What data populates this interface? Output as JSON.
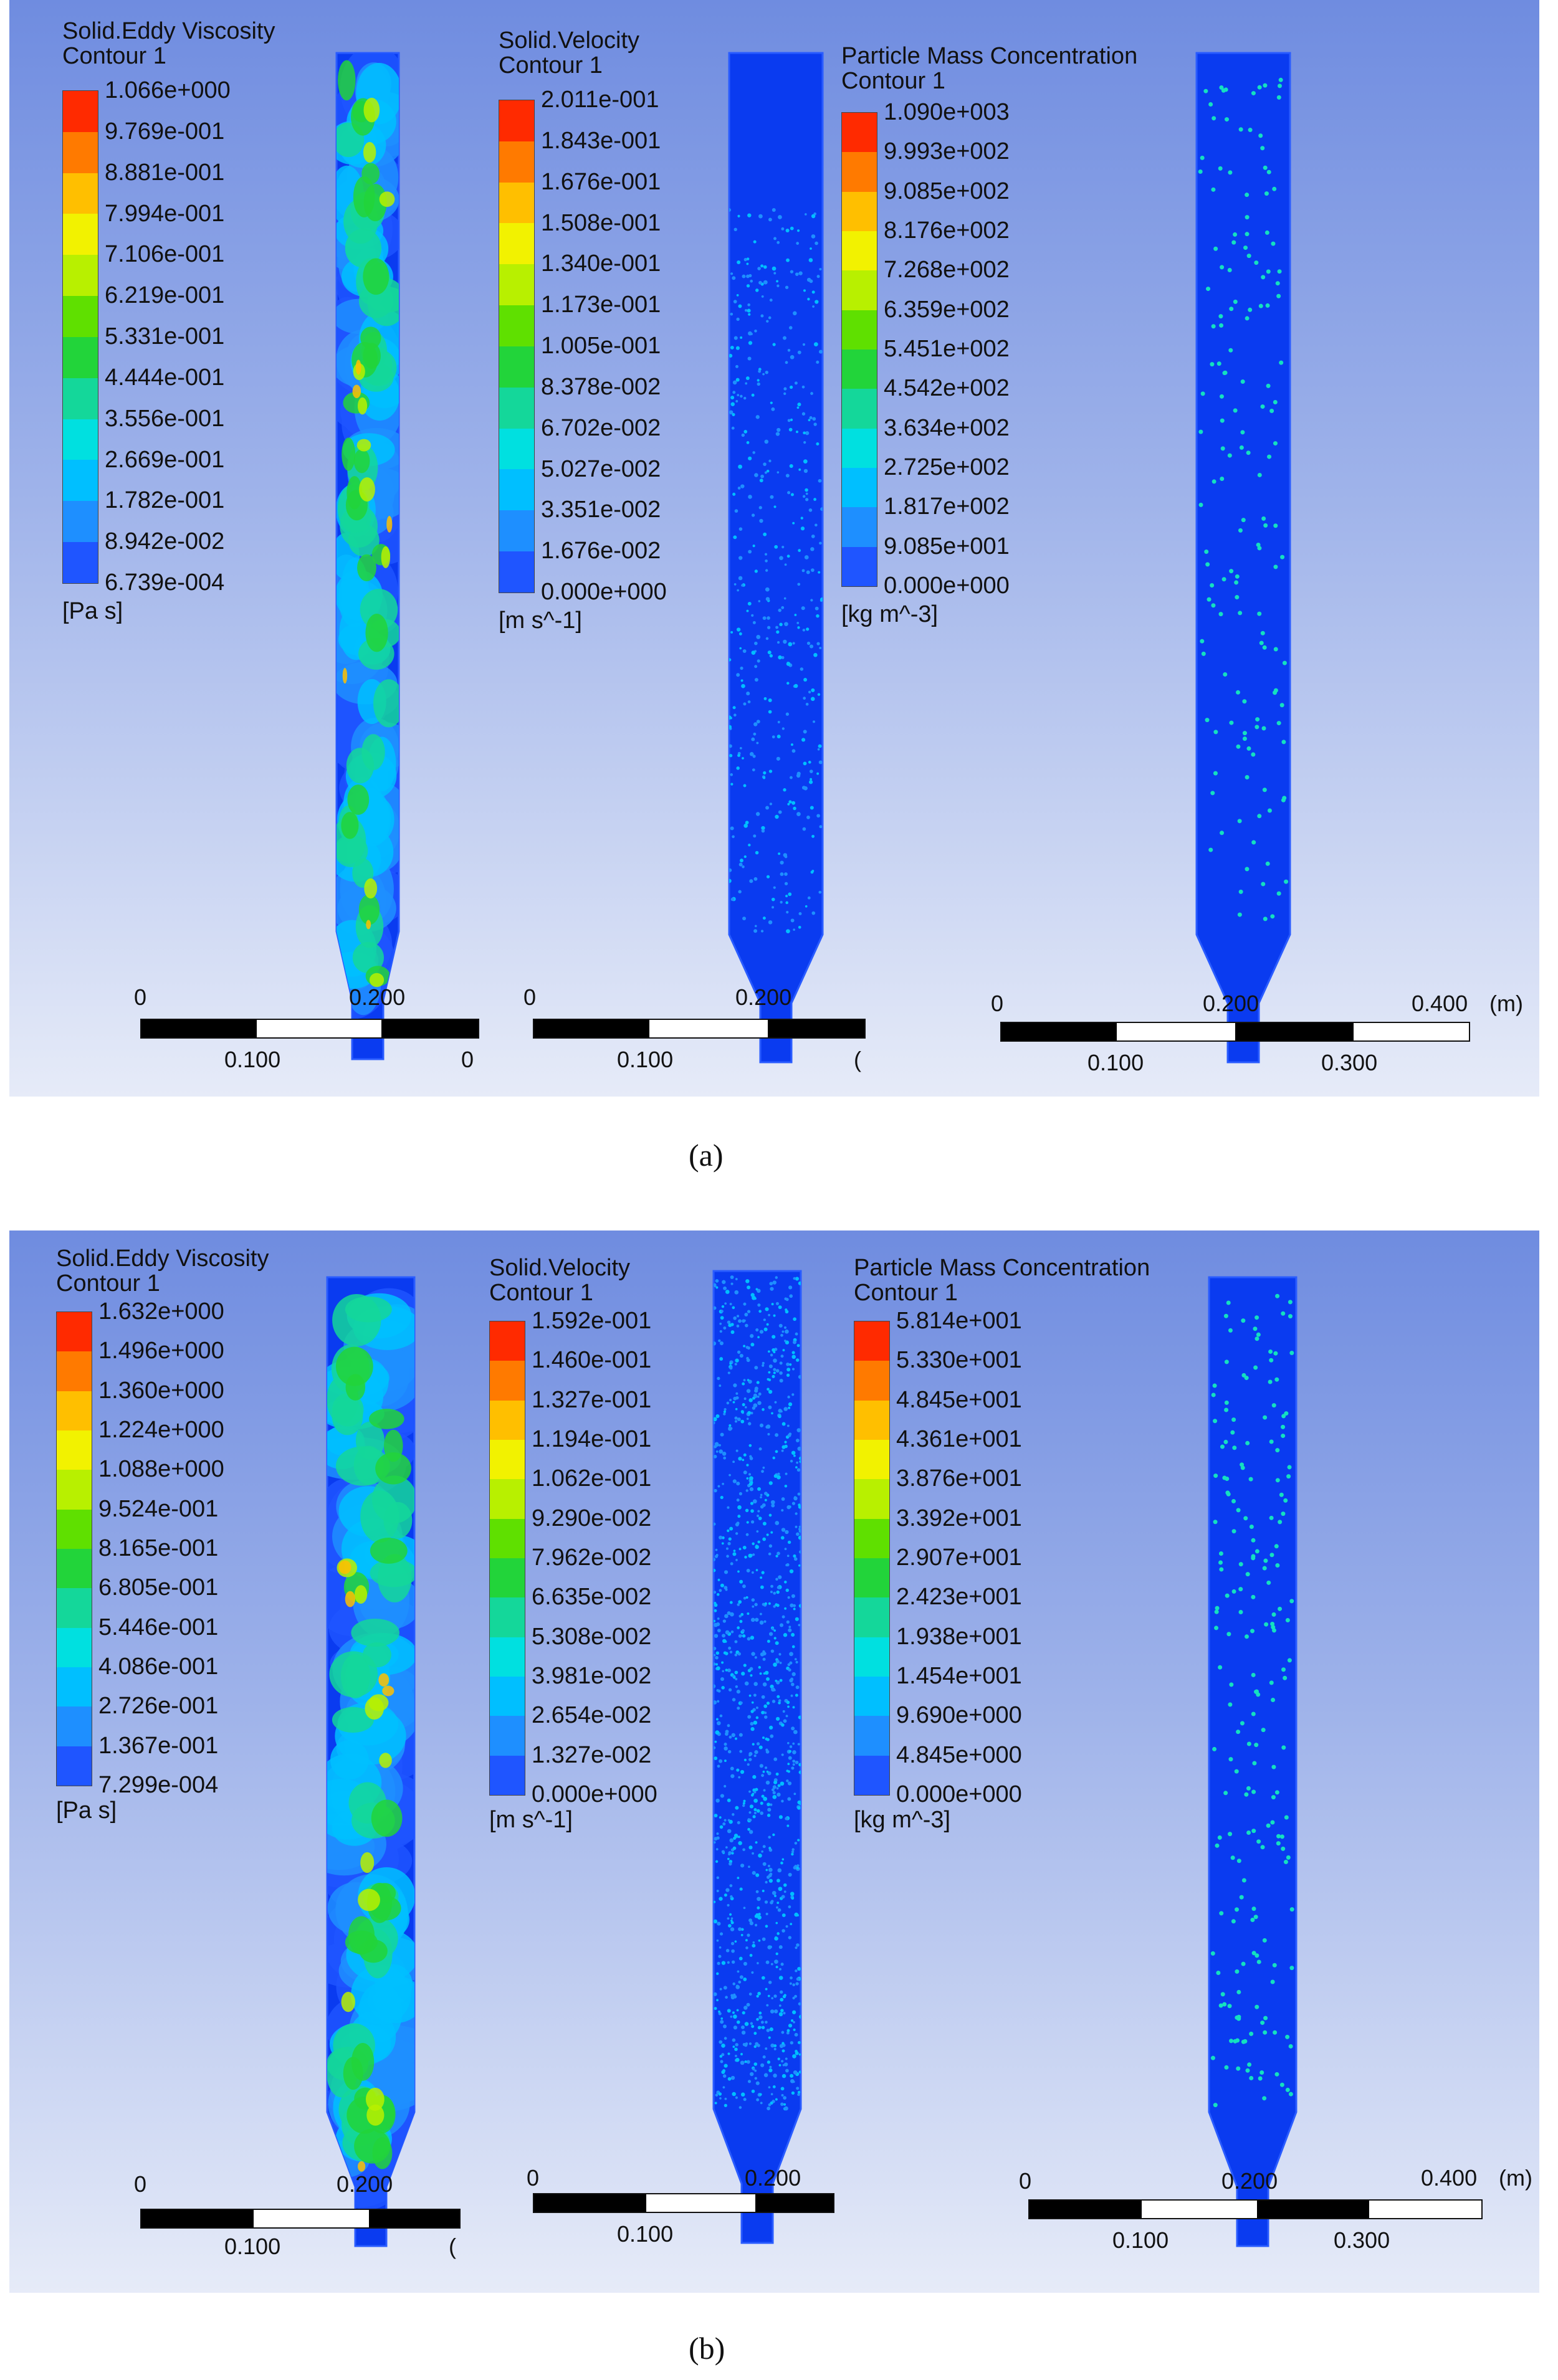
{
  "panels": {
    "a": {
      "label": "(a)",
      "eddy": {
        "title1": "Solid.Eddy Viscosity",
        "title2": "Contour 1",
        "ticks": [
          "1.066e+000",
          "9.769e-001",
          "8.881e-001",
          "7.994e-001",
          "7.106e-001",
          "6.219e-001",
          "5.331e-001",
          "4.444e-001",
          "3.556e-001",
          "2.669e-001",
          "1.782e-001",
          "8.942e-002",
          "6.739e-004"
        ],
        "unit": "[Pa s]"
      },
      "velocity": {
        "title1": "Solid.Velocity",
        "title2": "Contour 1",
        "ticks": [
          "2.011e-001",
          "1.843e-001",
          "1.676e-001",
          "1.508e-001",
          "1.340e-001",
          "1.173e-001",
          "1.005e-001",
          "8.378e-002",
          "6.702e-002",
          "5.027e-002",
          "3.351e-002",
          "1.676e-002",
          "0.000e+000"
        ],
        "unit": "[m s^-1]"
      },
      "concentration": {
        "title1": "Particle Mass Concentration",
        "title2": "Contour 1",
        "ticks": [
          "1.090e+003",
          "9.993e+002",
          "9.085e+002",
          "8.176e+002",
          "7.268e+002",
          "6.359e+002",
          "5.451e+002",
          "4.542e+002",
          "3.634e+002",
          "2.725e+002",
          "1.817e+002",
          "9.085e+001",
          "0.000e+000"
        ],
        "unit": "[kg m^-3]"
      },
      "scale": {
        "s1": {
          "zero": "0",
          "mid": "0.200",
          "sub": "0.100",
          "end": "0"
        },
        "s2": {
          "zero": "0",
          "mid": "0.200",
          "sub": "0.100",
          "end": "("
        },
        "s3": {
          "zero": "0",
          "mid": "0.200",
          "sub1": "0.100",
          "sub2": "0.300",
          "end": "0.400",
          "unit": "(m)"
        }
      }
    },
    "b": {
      "label": "(b)",
      "eddy": {
        "title1": "Solid.Eddy Viscosity",
        "title2": "Contour 1",
        "ticks": [
          "1.632e+000",
          "1.496e+000",
          "1.360e+000",
          "1.224e+000",
          "1.088e+000",
          "9.524e-001",
          "8.165e-001",
          "6.805e-001",
          "5.446e-001",
          "4.086e-001",
          "2.726e-001",
          "1.367e-001",
          "7.299e-004"
        ],
        "unit": "[Pa s]"
      },
      "velocity": {
        "title1": "Solid.Velocity",
        "title2": "Contour 1",
        "ticks": [
          "1.592e-001",
          "1.460e-001",
          "1.327e-001",
          "1.194e-001",
          "1.062e-001",
          "9.290e-002",
          "7.962e-002",
          "6.635e-002",
          "5.308e-002",
          "3.981e-002",
          "2.654e-002",
          "1.327e-002",
          "0.000e+000"
        ],
        "unit": "[m s^-1]"
      },
      "concentration": {
        "title1": "Particle Mass Concentration",
        "title2": "Contour 1",
        "ticks": [
          "5.814e+001",
          "5.330e+001",
          "4.845e+001",
          "4.361e+001",
          "3.876e+001",
          "3.392e+001",
          "2.907e+001",
          "2.423e+001",
          "1.938e+001",
          "1.454e+001",
          "9.690e+000",
          "4.845e+000",
          "0.000e+000"
        ],
        "unit": "[kg m^-3]"
      },
      "scale": {
        "s1": {
          "zero": "0",
          "mid": "0.200",
          "sub": "0.100",
          "end": "("
        },
        "s2": {
          "zero": "0",
          "mid": "0.200",
          "sub": "0.100",
          "end": ""
        },
        "s3": {
          "zero": "0",
          "mid": "0.200",
          "sub1": "0.100",
          "sub2": "0.300",
          "end": "0.400",
          "unit": "(m)"
        }
      }
    }
  },
  "colormap": [
    "#ff2a00",
    "#ff7a00",
    "#ffbf00",
    "#f2f200",
    "#b8f000",
    "#5fe000",
    "#22d43a",
    "#14d79a",
    "#00e0e0",
    "#00bfff",
    "#1e8fff",
    "#1f55ff",
    "#0033ff"
  ],
  "domain_fill": "#0a3bf0"
}
